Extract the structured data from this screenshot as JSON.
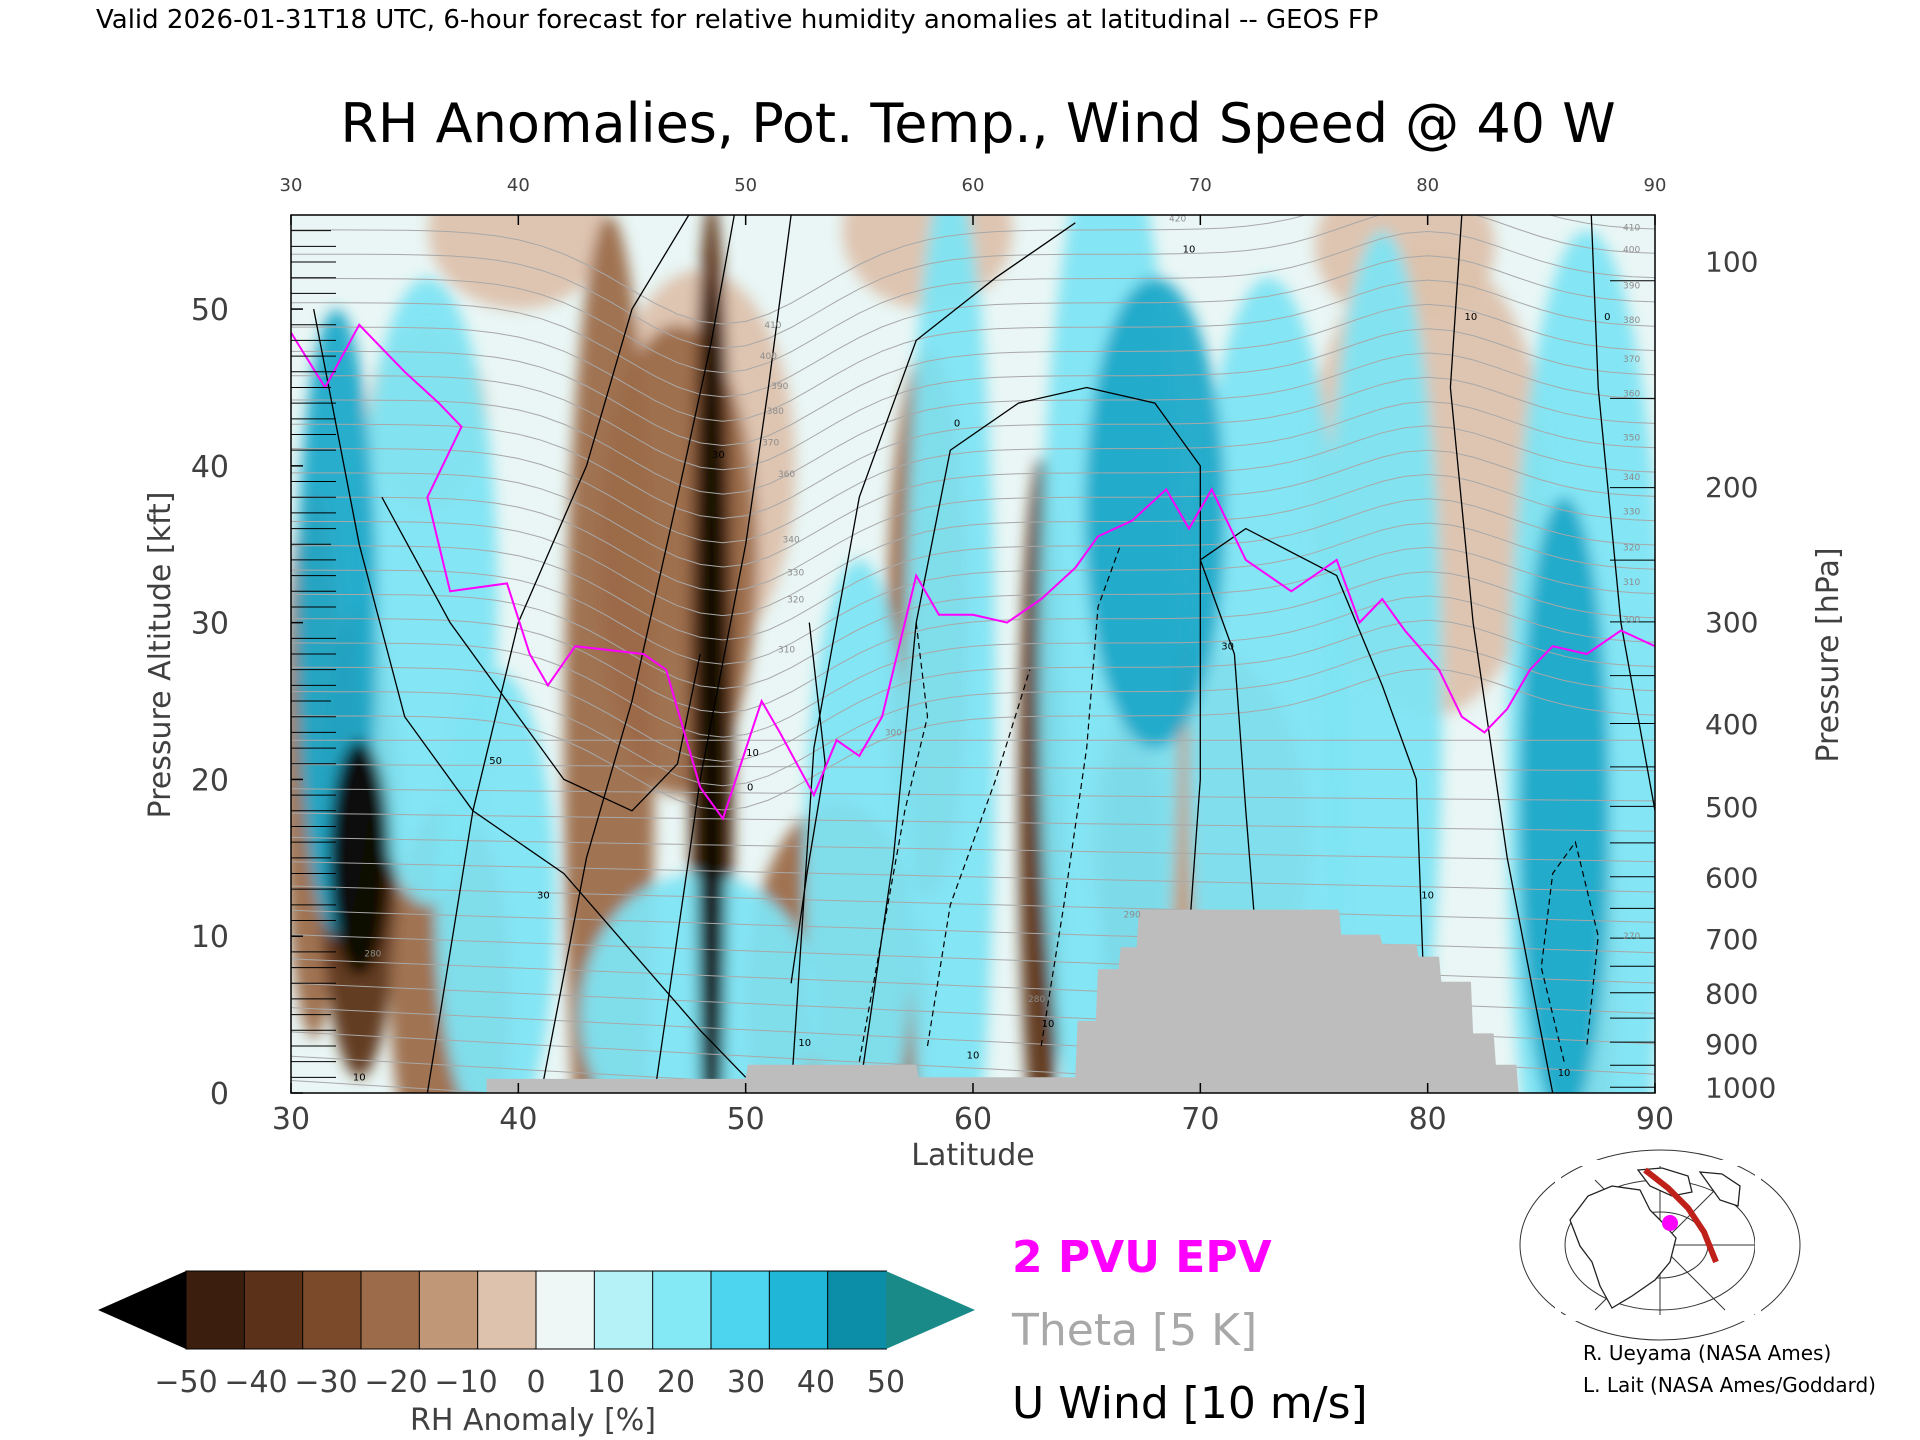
{
  "header": {
    "valid_line": "Valid 2026-01-31T18 UTC, 6-hour forecast for relative humidity anomalies at latitudinal -- GEOS FP"
  },
  "chart_data": {
    "type": "heatmap",
    "title": "RH Anomalies, Pot. Temp., Wind Speed @ 40 W",
    "xlabel": "Latitude",
    "ylabel_left": "Pressure Altitude [kft]",
    "ylabel_right": "Pressure [hPa]",
    "xlim": [
      30,
      90
    ],
    "ylim": [
      0,
      56
    ],
    "x_ticks": [
      30,
      40,
      50,
      60,
      70,
      80,
      90
    ],
    "y_ticks_left": [
      0,
      10,
      20,
      30,
      40,
      50
    ],
    "pressure_ticks": [
      {
        "hpa": 100,
        "kft": 53.1
      },
      {
        "hpa": 200,
        "kft": 38.7
      },
      {
        "hpa": 300,
        "kft": 30.1
      },
      {
        "hpa": 400,
        "kft": 23.6
      },
      {
        "hpa": 500,
        "kft": 18.3
      },
      {
        "hpa": 600,
        "kft": 13.8
      },
      {
        "hpa": 700,
        "kft": 9.9
      },
      {
        "hpa": 800,
        "kft": 6.4
      },
      {
        "hpa": 900,
        "kft": 3.2
      },
      {
        "hpa": 1000,
        "kft": 0.4
      }
    ],
    "theta_labels_right": [
      {
        "label": "410",
        "kft": 55.2
      },
      {
        "label": "400",
        "kft": 53.8
      },
      {
        "label": "390",
        "kft": 51.5
      },
      {
        "label": "380",
        "kft": 49.3
      },
      {
        "label": "370",
        "kft": 46.8
      },
      {
        "label": "360",
        "kft": 44.6
      },
      {
        "label": "350",
        "kft": 41.8
      },
      {
        "label": "340",
        "kft": 39.3
      },
      {
        "label": "330",
        "kft": 37.1
      },
      {
        "label": "320",
        "kft": 34.8
      },
      {
        "label": "310",
        "kft": 32.6
      },
      {
        "label": "300",
        "kft": 30.2
      },
      {
        "label": "270",
        "kft": 10.0
      }
    ],
    "theta_labels_inline": [
      {
        "label": "420",
        "lat": 69,
        "kft": 55.6
      },
      {
        "label": "410",
        "lat": 51.2,
        "kft": 48.8
      },
      {
        "label": "400",
        "lat": 51.0,
        "kft": 46.8
      },
      {
        "label": "390",
        "lat": 51.5,
        "kft": 44.9
      },
      {
        "label": "380",
        "lat": 51.3,
        "kft": 43.3
      },
      {
        "label": "370",
        "lat": 51.1,
        "kft": 41.3
      },
      {
        "label": "360",
        "lat": 51.8,
        "kft": 39.3
      },
      {
        "label": "340",
        "lat": 52.0,
        "kft": 35.1
      },
      {
        "label": "330",
        "lat": 52.2,
        "kft": 33.0
      },
      {
        "label": "320",
        "lat": 52.2,
        "kft": 31.3
      },
      {
        "label": "310",
        "lat": 51.8,
        "kft": 28.1
      },
      {
        "label": "300",
        "lat": 56.5,
        "kft": 22.8
      },
      {
        "label": "290",
        "lat": 67.0,
        "kft": 11.2
      },
      {
        "label": "280",
        "lat": 33.6,
        "kft": 8.7
      },
      {
        "label": "280",
        "lat": 62.8,
        "kft": 5.8
      }
    ],
    "wind_labels": [
      {
        "label": "10",
        "lat": 69.5,
        "kft": 53.6
      },
      {
        "label": "10",
        "lat": 81.9,
        "kft": 49.3
      },
      {
        "label": "0",
        "lat": 87.9,
        "kft": 49.3
      },
      {
        "label": "30",
        "lat": 48.8,
        "kft": 40.5
      },
      {
        "label": "0",
        "lat": 59.3,
        "kft": 42.5
      },
      {
        "label": "30",
        "lat": 71.2,
        "kft": 28.3
      },
      {
        "label": "50",
        "lat": 39.0,
        "kft": 21.0
      },
      {
        "label": "10",
        "lat": 50.3,
        "kft": 21.5
      },
      {
        "label": "0",
        "lat": 50.2,
        "kft": 19.3
      },
      {
        "label": "30",
        "lat": 41.1,
        "kft": 12.4
      },
      {
        "label": "10",
        "lat": 80.0,
        "kft": 12.4
      },
      {
        "label": "10",
        "lat": 52.6,
        "kft": 3.0
      },
      {
        "label": "10",
        "lat": 60.0,
        "kft": 2.2
      },
      {
        "label": "10",
        "lat": 63.3,
        "kft": 4.2
      },
      {
        "label": "10",
        "lat": 33.0,
        "kft": 0.8
      },
      {
        "label": "10",
        "lat": 86.0,
        "kft": 1.1
      }
    ],
    "epv_2pvu": [
      [
        30.0,
        48.5
      ],
      [
        31.5,
        45.0
      ],
      [
        33.0,
        49.0
      ],
      [
        35.0,
        46.0
      ],
      [
        36.5,
        44.0
      ],
      [
        37.5,
        42.5
      ],
      [
        36.0,
        38.0
      ],
      [
        37.0,
        32.0
      ],
      [
        39.5,
        32.5
      ],
      [
        40.5,
        28.0
      ],
      [
        41.3,
        26.0
      ],
      [
        42.5,
        28.5
      ],
      [
        45.5,
        28.0
      ],
      [
        46.5,
        27.0
      ],
      [
        48.0,
        19.5
      ],
      [
        49.0,
        17.5
      ],
      [
        50.7,
        25.0
      ],
      [
        51.5,
        23.0
      ],
      [
        53.0,
        19.0
      ],
      [
        54.0,
        22.5
      ],
      [
        55.0,
        21.5
      ],
      [
        56.0,
        24.0
      ],
      [
        57.5,
        33.0
      ],
      [
        58.5,
        30.5
      ],
      [
        60.0,
        30.5
      ],
      [
        61.5,
        30.0
      ],
      [
        63.0,
        31.5
      ],
      [
        64.5,
        33.5
      ],
      [
        65.5,
        35.5
      ],
      [
        67.0,
        36.5
      ],
      [
        68.5,
        38.5
      ],
      [
        69.5,
        36.0
      ],
      [
        70.5,
        38.5
      ],
      [
        72.0,
        34.0
      ],
      [
        74.0,
        32.0
      ],
      [
        76.0,
        34.0
      ],
      [
        77.0,
        30.0
      ],
      [
        78.0,
        31.5
      ],
      [
        79.0,
        29.5
      ],
      [
        80.5,
        27.0
      ],
      [
        81.5,
        24.0
      ],
      [
        82.5,
        23.0
      ],
      [
        83.5,
        24.5
      ],
      [
        84.5,
        27.0
      ],
      [
        85.5,
        28.5
      ],
      [
        87.0,
        28.0
      ],
      [
        88.5,
        29.5
      ],
      [
        90.0,
        28.5
      ]
    ],
    "colorbar": {
      "label": "RH Anomaly [%]",
      "ticks": [
        "−50",
        "−40",
        "−30",
        "−20",
        "−10",
        "0",
        "10",
        "20",
        "30",
        "40",
        "50"
      ],
      "colors": [
        "#3b1e0e",
        "#5c3119",
        "#7a4a2b",
        "#9c6b4a",
        "#c09878",
        "#ddc2ad",
        "#eef7f6",
        "#b5f2f8",
        "#85e8f5",
        "#4dd4ee",
        "#20b6d8",
        "#0c8ea9"
      ],
      "under_color": "#000000",
      "over_color": "#1a8a88"
    },
    "legend": {
      "epv": "2 PVU EPV",
      "theta": "Theta [5 K]",
      "wind": "U Wind [10 m/s]",
      "epv_color": "#ff00ff",
      "theta_color": "#a8a8a8",
      "wind_color": "#000000"
    },
    "terrain_color": "#bdbdbd"
  },
  "credits": {
    "line1": "R. Ueyama (NASA Ames)",
    "line2": "L. Lait (NASA Ames/Goddard)"
  },
  "inset_map": {
    "route_color": "#c0201a",
    "marker_color": "#ff00ff"
  }
}
